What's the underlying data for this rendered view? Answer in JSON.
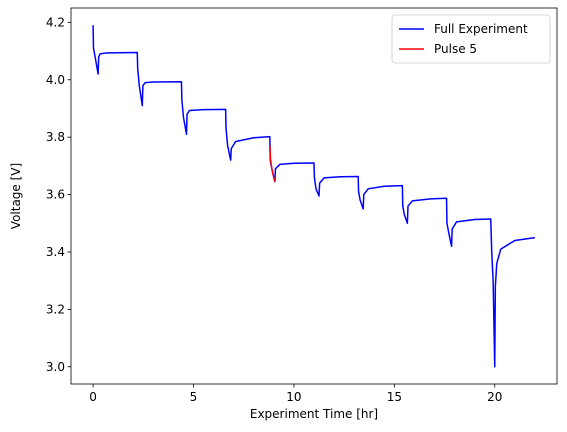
{
  "chart_data": {
    "type": "line",
    "xlabel": "Experiment Time [hr]",
    "ylabel": "Voltage [V]",
    "xlim": [
      -1.1,
      23.1
    ],
    "ylim": [
      2.94,
      4.25
    ],
    "x_ticks": [
      0,
      5,
      10,
      15,
      20
    ],
    "y_ticks": [
      3.0,
      3.2,
      3.4,
      3.6,
      3.8,
      4.0,
      4.2
    ],
    "x_tick_labels": [
      "0",
      "5",
      "10",
      "15",
      "20"
    ],
    "y_tick_labels": [
      "3.0",
      "3.2",
      "3.4",
      "3.6",
      "3.8",
      "4.0",
      "4.2"
    ],
    "legend_position": "top-right",
    "grid": false,
    "series": [
      {
        "name": "Full Experiment",
        "color": "#0000ff",
        "points": [
          [
            0.0,
            4.19
          ],
          [
            0.02,
            4.11
          ],
          [
            0.1,
            4.08
          ],
          [
            0.2,
            4.04
          ],
          [
            0.25,
            4.02
          ],
          [
            0.28,
            4.08
          ],
          [
            0.35,
            4.09
          ],
          [
            0.6,
            4.093
          ],
          [
            1.2,
            4.094
          ],
          [
            2.2,
            4.095
          ],
          [
            2.22,
            4.04
          ],
          [
            2.3,
            3.98
          ],
          [
            2.45,
            3.91
          ],
          [
            2.48,
            3.98
          ],
          [
            2.6,
            3.99
          ],
          [
            3.0,
            3.992
          ],
          [
            4.4,
            3.993
          ],
          [
            4.42,
            3.93
          ],
          [
            4.5,
            3.87
          ],
          [
            4.65,
            3.81
          ],
          [
            4.68,
            3.88
          ],
          [
            4.8,
            3.893
          ],
          [
            5.5,
            3.896
          ],
          [
            6.6,
            3.897
          ],
          [
            6.62,
            3.83
          ],
          [
            6.7,
            3.77
          ],
          [
            6.85,
            3.72
          ],
          [
            6.88,
            3.76
          ],
          [
            7.1,
            3.785
          ],
          [
            8.0,
            3.798
          ],
          [
            8.8,
            3.802
          ],
          [
            8.82,
            3.72
          ],
          [
            8.9,
            3.69
          ],
          [
            9.05,
            3.645
          ],
          [
            9.08,
            3.69
          ],
          [
            9.3,
            3.705
          ],
          [
            10.0,
            3.709
          ],
          [
            11.0,
            3.71
          ],
          [
            11.02,
            3.66
          ],
          [
            11.1,
            3.62
          ],
          [
            11.25,
            3.595
          ],
          [
            11.28,
            3.64
          ],
          [
            11.5,
            3.658
          ],
          [
            12.3,
            3.662
          ],
          [
            13.2,
            3.663
          ],
          [
            13.22,
            3.61
          ],
          [
            13.3,
            3.58
          ],
          [
            13.45,
            3.55
          ],
          [
            13.48,
            3.6
          ],
          [
            13.7,
            3.62
          ],
          [
            14.5,
            3.629
          ],
          [
            15.4,
            3.631
          ],
          [
            15.42,
            3.56
          ],
          [
            15.5,
            3.53
          ],
          [
            15.65,
            3.5
          ],
          [
            15.68,
            3.56
          ],
          [
            15.9,
            3.578
          ],
          [
            16.8,
            3.585
          ],
          [
            17.6,
            3.587
          ],
          [
            17.62,
            3.5
          ],
          [
            17.7,
            3.47
          ],
          [
            17.85,
            3.42
          ],
          [
            17.88,
            3.48
          ],
          [
            18.1,
            3.505
          ],
          [
            19.0,
            3.513
          ],
          [
            19.8,
            3.515
          ],
          [
            19.85,
            3.4
          ],
          [
            19.92,
            3.3
          ],
          [
            20.0,
            3.0
          ],
          [
            20.03,
            3.28
          ],
          [
            20.1,
            3.36
          ],
          [
            20.3,
            3.41
          ],
          [
            21.0,
            3.44
          ],
          [
            22.0,
            3.45
          ]
        ]
      },
      {
        "name": "Pulse 5",
        "color": "#ff0000",
        "points": [
          [
            8.8,
            3.77
          ],
          [
            8.84,
            3.72
          ],
          [
            8.9,
            3.69
          ],
          [
            8.98,
            3.665
          ],
          [
            9.05,
            3.645
          ]
        ]
      }
    ]
  }
}
